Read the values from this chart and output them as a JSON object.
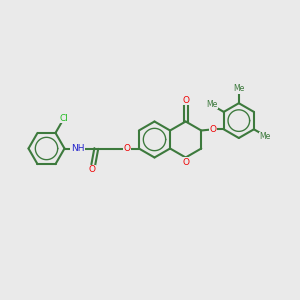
{
  "bg": "#EAEAEA",
  "bc": "#3d7a3d",
  "lw": 1.5,
  "O_color": "#ee0000",
  "N_color": "#2222cc",
  "Cl_color": "#22bb22",
  "xlim": [
    0,
    10
  ],
  "ylim": [
    0,
    10
  ],
  "figsize": [
    3.0,
    3.0
  ],
  "dpi": 100
}
